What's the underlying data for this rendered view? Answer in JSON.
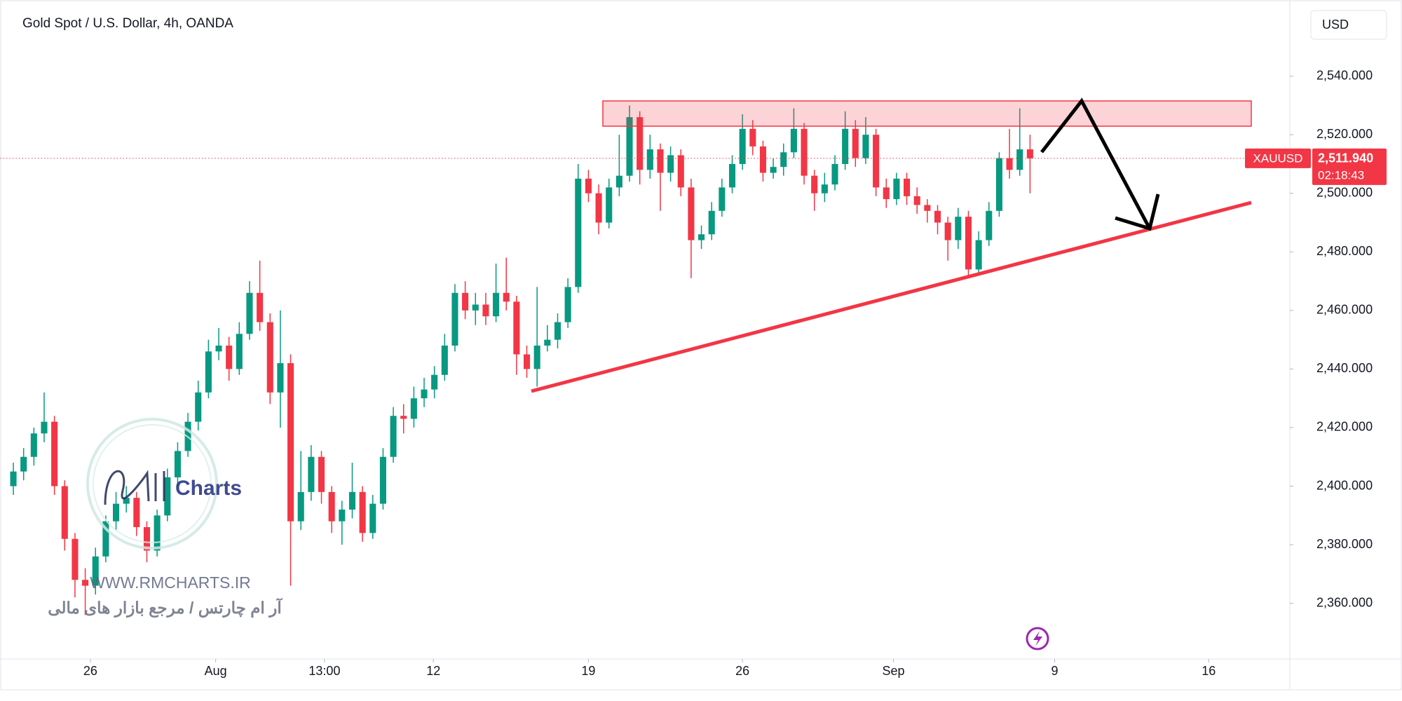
{
  "chart_data": {
    "type": "candlestick",
    "title": "Gold Spot / U.S. Dollar, 4h, OANDA",
    "currency": "USD",
    "symbol": "XAUUSD",
    "price_label": "2,511.940",
    "countdown": "02:18:43",
    "up_color": "#089981",
    "down_color": "#f23645",
    "xlim": [
      -1.3,
      124.3
    ],
    "ylim": [
      2341,
      2566
    ],
    "xticks": [
      {
        "value": 7.5,
        "label": "26"
      },
      {
        "value": 19.7,
        "label": "Aug"
      },
      {
        "value": 30.3,
        "label": "13:00"
      },
      {
        "value": 40.9,
        "label": "12"
      },
      {
        "value": 56,
        "label": "19"
      },
      {
        "value": 71,
        "label": "26"
      },
      {
        "value": 85.7,
        "label": "Sep"
      },
      {
        "value": 101.4,
        "label": "9"
      },
      {
        "value": 116.4,
        "label": "16"
      }
    ],
    "yticks": [
      {
        "value": 2540,
        "label": "2,540.000"
      },
      {
        "value": 2520,
        "label": "2,520.000"
      },
      {
        "value": 2500,
        "label": "2,500.000"
      },
      {
        "value": 2480,
        "label": "2,480.000"
      },
      {
        "value": 2460,
        "label": "2,460.000"
      },
      {
        "value": 2440,
        "label": "2,440.000"
      },
      {
        "value": 2420,
        "label": "2,420.000"
      },
      {
        "value": 2400,
        "label": "2,400.000"
      },
      {
        "value": 2380,
        "label": "2,380.000"
      },
      {
        "value": 2360,
        "label": "2,360.000"
      }
    ],
    "series": [
      {
        "name": "XAUUSD",
        "open": [
          2400,
          2405,
          2410,
          2418,
          2422,
          2400,
          2382,
          2368,
          2366,
          2376,
          2388,
          2394,
          2396,
          2386,
          2378,
          2390,
          2403,
          2412,
          2422,
          2432,
          2446,
          2448,
          2440,
          2452,
          2466,
          2456,
          2432,
          2442,
          2388,
          2398,
          2410,
          2398,
          2388,
          2392,
          2398,
          2384,
          2394,
          2410,
          2424,
          2423,
          2430,
          2433,
          2438,
          2448,
          2466,
          2460,
          2462,
          2458,
          2466,
          2463,
          2445,
          2440,
          2448,
          2450,
          2456,
          2468,
          2505,
          2500,
          2490,
          2502,
          2506,
          2526,
          2508,
          2515,
          2507,
          2513,
          2502,
          2484,
          2486,
          2494,
          2502,
          2510,
          2522,
          2516,
          2507,
          2509,
          2514,
          2522,
          2506,
          2500,
          2503,
          2510,
          2522,
          2512,
          2520,
          2502,
          2498,
          2505,
          2499,
          2496,
          2494,
          2490,
          2484,
          2492,
          2474,
          2484,
          2494,
          2512,
          2508,
          2515
        ],
        "high": [
          2408,
          2413,
          2420,
          2432,
          2424,
          2402,
          2384,
          2372,
          2379,
          2390,
          2398,
          2400,
          2398,
          2388,
          2392,
          2406,
          2415,
          2425,
          2436,
          2450,
          2454,
          2451,
          2456,
          2470,
          2477,
          2459,
          2460,
          2445,
          2412,
          2414,
          2412,
          2400,
          2395,
          2408,
          2400,
          2397,
          2413,
          2427,
          2428,
          2434,
          2437,
          2441,
          2452,
          2469,
          2470,
          2466,
          2466,
          2476,
          2478,
          2465,
          2448,
          2468,
          2455,
          2459,
          2471,
          2510,
          2508,
          2503,
          2505,
          2520,
          2530,
          2528,
          2520,
          2517,
          2516,
          2515,
          2505,
          2489,
          2497,
          2505,
          2513,
          2527,
          2525,
          2518,
          2512,
          2517,
          2529,
          2524,
          2508,
          2507,
          2513,
          2528,
          2525,
          2526,
          2522,
          2505,
          2507,
          2507,
          2502,
          2498,
          2496,
          2492,
          2495,
          2494,
          2487,
          2497,
          2514,
          2522,
          2529,
          2520
        ],
        "low": [
          2397,
          2402,
          2407,
          2415,
          2397,
          2378,
          2362,
          2356,
          2363,
          2374,
          2385,
          2391,
          2383,
          2374,
          2376,
          2388,
          2400,
          2410,
          2419,
          2430,
          2443,
          2436,
          2438,
          2450,
          2453,
          2428,
          2420,
          2366,
          2385,
          2395,
          2394,
          2384,
          2380,
          2389,
          2381,
          2382,
          2392,
          2408,
          2418,
          2420,
          2427,
          2430,
          2436,
          2446,
          2457,
          2455,
          2455,
          2456,
          2460,
          2438,
          2437,
          2434,
          2446,
          2447,
          2454,
          2466,
          2497,
          2486,
          2488,
          2499,
          2504,
          2503,
          2505,
          2494,
          2504,
          2499,
          2471,
          2481,
          2484,
          2492,
          2500,
          2508,
          2513,
          2504,
          2505,
          2506,
          2512,
          2503,
          2494,
          2497,
          2501,
          2508,
          2509,
          2510,
          2499,
          2495,
          2496,
          2496,
          2493,
          2490,
          2486,
          2477,
          2481,
          2472,
          2472,
          2482,
          2492,
          2505,
          2506,
          2500
        ],
        "close": [
          2405,
          2410,
          2418,
          2422,
          2400,
          2382,
          2368,
          2366,
          2376,
          2388,
          2394,
          2396,
          2386,
          2378,
          2390,
          2403,
          2412,
          2422,
          2432,
          2446,
          2448,
          2440,
          2452,
          2466,
          2456,
          2432,
          2442,
          2388,
          2398,
          2410,
          2398,
          2388,
          2392,
          2398,
          2384,
          2394,
          2410,
          2424,
          2423,
          2430,
          2433,
          2438,
          2448,
          2466,
          2460,
          2462,
          2458,
          2466,
          2463,
          2445,
          2440,
          2448,
          2450,
          2456,
          2468,
          2505,
          2500,
          2490,
          2502,
          2506,
          2526,
          2508,
          2515,
          2507,
          2513,
          2502,
          2484,
          2486,
          2494,
          2502,
          2510,
          2522,
          2516,
          2507,
          2509,
          2514,
          2522,
          2506,
          2500,
          2503,
          2510,
          2522,
          2512,
          2520,
          2502,
          2498,
          2505,
          2499,
          2496,
          2494,
          2490,
          2484,
          2492,
          2474,
          2484,
          2494,
          2512,
          2508,
          2515,
          2511.94
        ]
      }
    ]
  },
  "watermark": {
    "brand": "Charts",
    "url": "WWW.RMCHARTS.IR",
    "tagline": "آر ام چارتس / مرجع بازار های مالی"
  }
}
